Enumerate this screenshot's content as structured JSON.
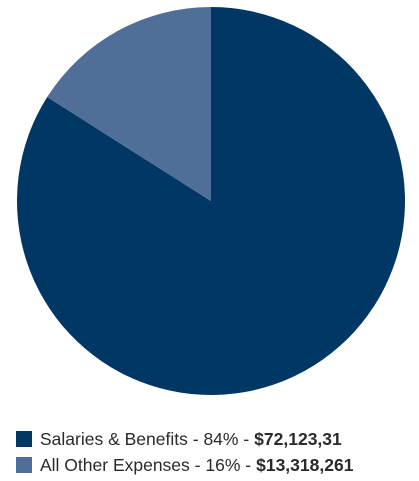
{
  "chart_data": {
    "type": "pie",
    "slices": [
      {
        "label": "Salaries & Benefits",
        "percent_label": "84%",
        "amount": "$72,123,31",
        "value": 84,
        "color": "#003764"
      },
      {
        "label": "All Other Expenses",
        "percent_label": "16%",
        "amount": "$13,318,261",
        "value": 16,
        "color": "#4f6f99"
      }
    ],
    "legend_position": "bottom-left"
  },
  "legend": [
    {
      "label": "Salaries & Benefits",
      "separator": "-",
      "percent": "84%",
      "dash": "-",
      "amount": "$72,123,31",
      "color": "#003764"
    },
    {
      "label": "All Other Expenses",
      "separator": "-",
      "percent": "16%",
      "dash": "-",
      "amount": "$13,318,261",
      "color": "#4f6f99"
    }
  ]
}
